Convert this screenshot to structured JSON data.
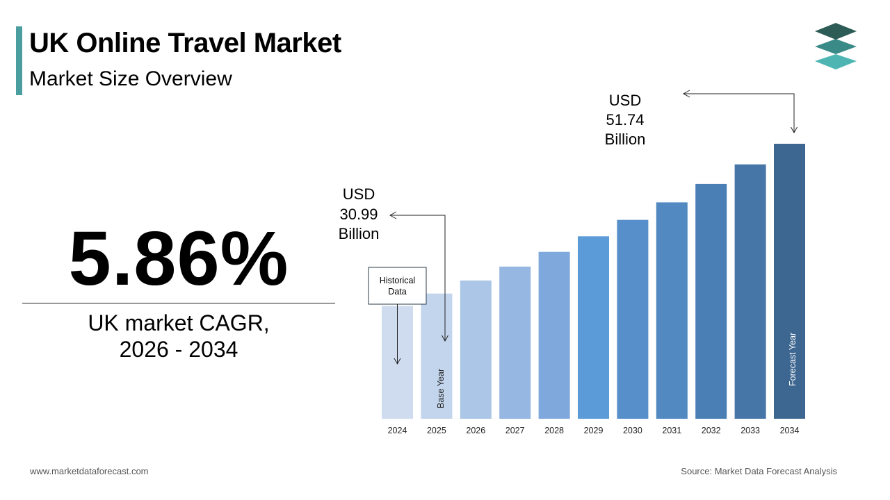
{
  "header": {
    "title": "UK Online Travel Market",
    "subtitle": "Market Size Overview",
    "logo_icon": "stacked-layers-icon"
  },
  "cagr": {
    "value": "5.86%",
    "label_line1": "UK market CAGR,",
    "label_line2": "2026 - 2034"
  },
  "chart_data": {
    "type": "bar",
    "categories": [
      "2024",
      "2025",
      "2026",
      "2027",
      "2028",
      "2029",
      "2030",
      "2031",
      "2032",
      "2033",
      "2034"
    ],
    "values": [
      29.27,
      30.99,
      32.8,
      34.73,
      36.76,
      38.92,
      41.2,
      43.62,
      46.17,
      48.88,
      51.74
    ],
    "ylim": [
      0,
      60
    ],
    "grid": false,
    "legend": "none",
    "colors": [
      "#cfdcef",
      "#c3d5ec",
      "#abc6e6",
      "#95b7e1",
      "#7fa8dc",
      "#5b9bd8",
      "#578fcb",
      "#5189c0",
      "#4a7fb5",
      "#4676a8",
      "#3d6690"
    ],
    "annotations": {
      "base_value": {
        "line1": "USD",
        "line2": "30.99",
        "line3": "Billion"
      },
      "forecast_value": {
        "line1": "USD",
        "line2": "51.74",
        "line3": "Billion"
      },
      "historical_label": {
        "line1": "Historical",
        "line2": "Data"
      },
      "base_year_label": "Base Year",
      "forecast_year_label": "Forecast Year"
    }
  },
  "footer": {
    "website": "www.marketdataforecast.com",
    "source": "Source: Market Data Forecast Analysis"
  }
}
